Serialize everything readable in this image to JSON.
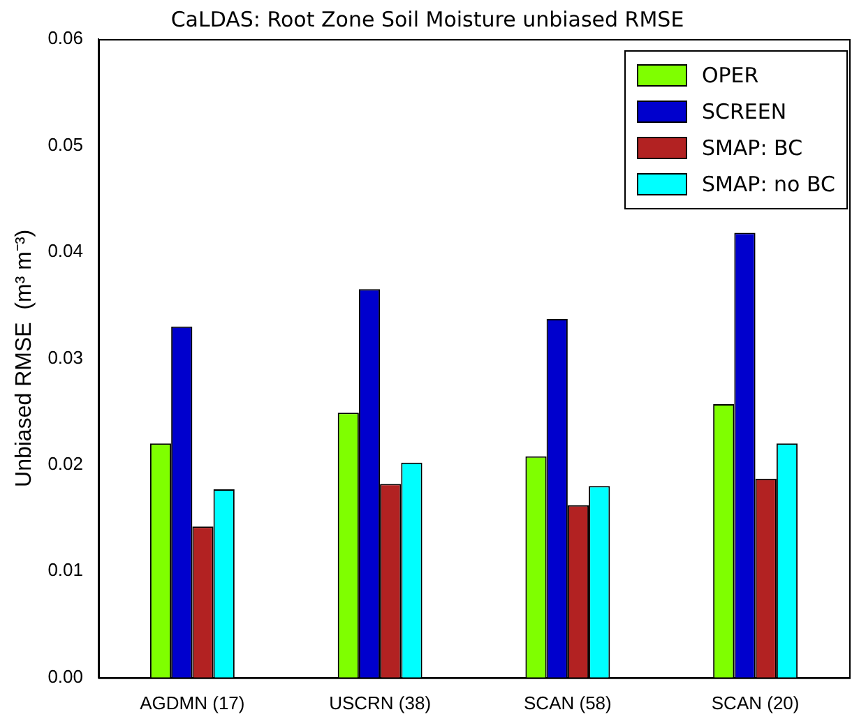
{
  "chart_data": {
    "type": "bar",
    "title": "CaLDAS: Root Zone Soil Moisture unbiased RMSE",
    "ylabel": "Unbiased RMSE  (m³ m⁻³)",
    "categories": [
      "AGDMN (17)",
      "USCRN (38)",
      "SCAN (58)",
      "SCAN (20)"
    ],
    "series": [
      {
        "name": "OPER",
        "color": "#7fff00",
        "values": [
          0.022,
          0.0249,
          0.0208,
          0.0257
        ]
      },
      {
        "name": "SCREEN",
        "color": "#0000cd",
        "values": [
          0.033,
          0.0365,
          0.0337,
          0.0418
        ]
      },
      {
        "name": "SMAP: BC",
        "color": "#b22222",
        "values": [
          0.0142,
          0.0182,
          0.0162,
          0.0187
        ]
      },
      {
        "name": "SMAP: no BC",
        "color": "#00ffff",
        "values": [
          0.0177,
          0.0202,
          0.018,
          0.022
        ]
      }
    ],
    "ylim": [
      0,
      0.06
    ],
    "yticks": [
      {
        "value": 0,
        "label": "0.00"
      },
      {
        "value": 0.01,
        "label": "0.01"
      },
      {
        "value": 0.02,
        "label": "0.02"
      },
      {
        "value": 0.03,
        "label": "0.03"
      },
      {
        "value": 0.04,
        "label": "0.04"
      },
      {
        "value": 0.05,
        "label": "0.05"
      },
      {
        "value": 0.06,
        "label": "0.06"
      }
    ],
    "grid": false,
    "legend": "top right"
  }
}
